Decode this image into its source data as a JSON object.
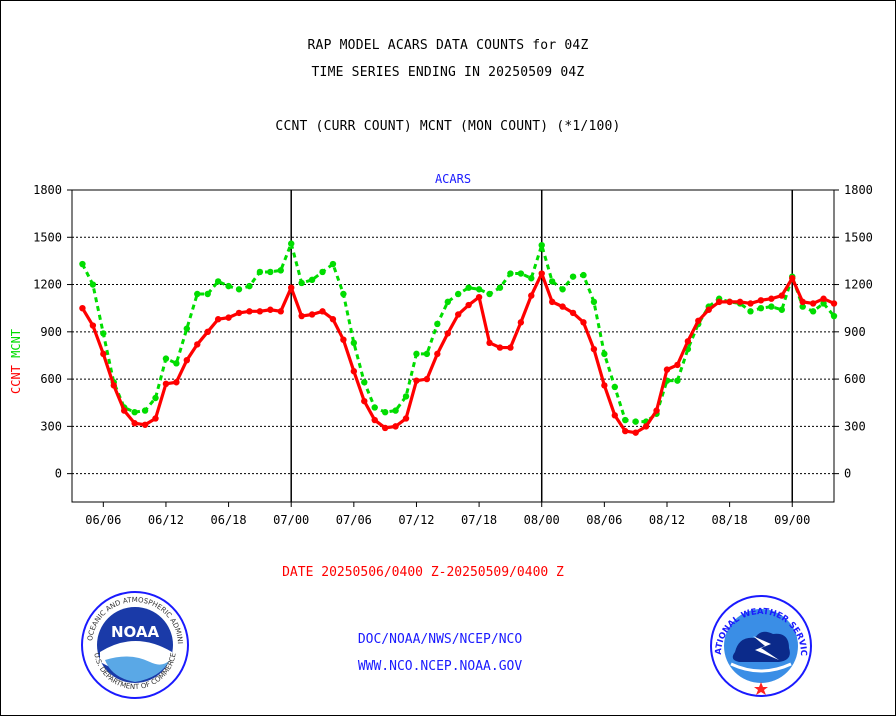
{
  "header": {
    "title_line1": "RAP MODEL ACARS DATA COUNTS for 04Z",
    "title_line2": "TIME SERIES ENDING IN 20250509 04Z",
    "subtitle": "CCNT (CURR COUNT) MCNT (MON COUNT) (*1/100)"
  },
  "footer": {
    "date_range": "DATE 20250506/0400 Z-20250509/0400 Z",
    "link1": "DOC/NOAA/NWS/NCEP/NCO",
    "link2": "WWW.NCO.NCEP.NOAA.GOV"
  },
  "logos": {
    "noaa": "NOAA",
    "noaa_ring_top": "NATIONAL OCEANIC AND ATMOSPHERIC ADMINISTRATION",
    "noaa_ring_bottom": "U.S. DEPARTMENT OF COMMERCE",
    "nws_ring": "NATIONAL WEATHER SERVICE"
  },
  "colors": {
    "ccnt": "#ff0000",
    "mcnt": "#00dd00",
    "chart_title": "#1a1aff"
  },
  "chart_data": {
    "type": "line",
    "title": "ACARS",
    "ylabel_left": "CCNT MCNT",
    "ylim": [
      -180,
      1800
    ],
    "y_ticks": [
      0,
      300,
      600,
      900,
      1200,
      1500,
      1800
    ],
    "y_tick_labels": [
      "0",
      "300",
      "600",
      "900",
      "1200",
      "1500",
      "1800"
    ],
    "x_range": [
      -1,
      72
    ],
    "x_ticks": [
      2,
      8,
      14,
      20,
      26,
      32,
      38,
      44,
      50,
      56,
      62,
      68
    ],
    "x_tick_labels": [
      "06/06",
      "06/12",
      "06/18",
      "07/00",
      "07/06",
      "07/12",
      "07/18",
      "08/00",
      "08/06",
      "08/12",
      "08/18",
      "09/00"
    ],
    "day_boundaries": [
      20,
      44,
      68
    ],
    "grid": true,
    "series": [
      {
        "name": "CCNT",
        "color": "#ff0000",
        "values": [
          1050,
          940,
          760,
          560,
          400,
          320,
          310,
          350,
          570,
          580,
          720,
          820,
          900,
          980,
          990,
          1020,
          1030,
          1030,
          1040,
          1030,
          1180,
          1000,
          1010,
          1030,
          980,
          850,
          650,
          460,
          340,
          290,
          300,
          350,
          590,
          600,
          760,
          890,
          1010,
          1070,
          1120,
          830,
          800,
          800,
          960,
          1130,
          1270,
          1090,
          1060,
          1020,
          960,
          790,
          560,
          370,
          270,
          260,
          300,
          400,
          660,
          690,
          840,
          970,
          1040,
          1090,
          1090,
          1090,
          1080,
          1100,
          1110,
          1130,
          1240,
          1090,
          1080,
          1110,
          1080
        ]
      },
      {
        "name": "MCNT",
        "color": "#00dd00",
        "values": [
          1330,
          1200,
          890,
          580,
          420,
          390,
          400,
          480,
          730,
          700,
          920,
          1140,
          1140,
          1220,
          1190,
          1170,
          1190,
          1280,
          1280,
          1290,
          1460,
          1210,
          1230,
          1280,
          1330,
          1140,
          830,
          580,
          420,
          390,
          400,
          490,
          760,
          760,
          950,
          1090,
          1140,
          1180,
          1170,
          1140,
          1180,
          1270,
          1270,
          1240,
          1450,
          1220,
          1170,
          1250,
          1260,
          1090,
          760,
          550,
          340,
          330,
          330,
          380,
          590,
          590,
          790,
          950,
          1060,
          1110,
          1090,
          1080,
          1030,
          1050,
          1060,
          1040,
          1250,
          1060,
          1030,
          1080,
          1000
        ]
      }
    ]
  }
}
